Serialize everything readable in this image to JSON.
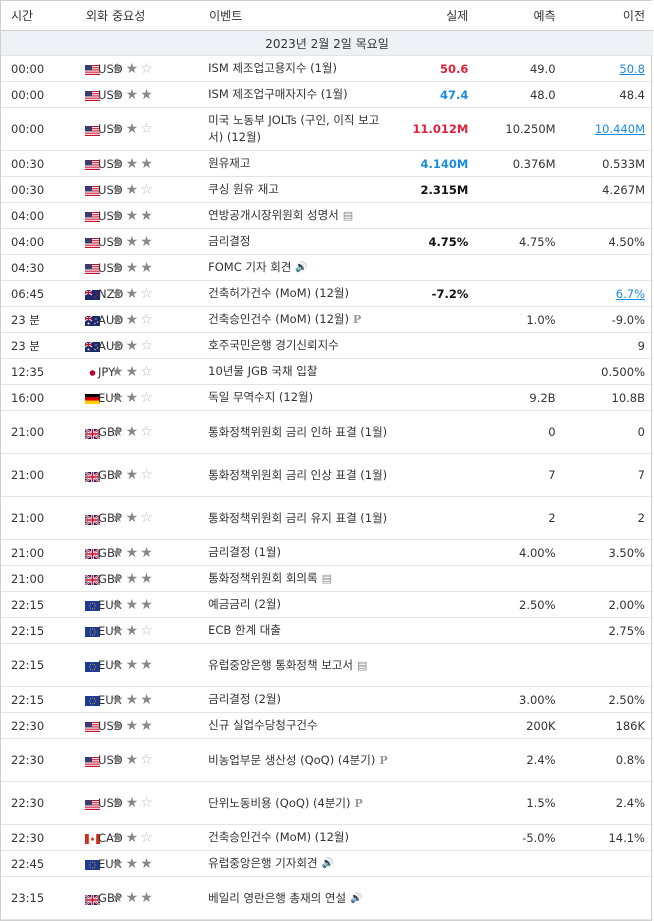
{
  "headers": {
    "time": "시간",
    "currency": "외화",
    "importance": "중요성",
    "event": "이벤트",
    "actual": "실제",
    "forecast": "예측",
    "previous": "이전"
  },
  "date_label": "2023년 2월 2일 목요일",
  "colors": {
    "red": "#e0213a",
    "blue": "#1a8ce0",
    "date_bg": "#eef0f6"
  },
  "rows": [
    {
      "time": "00:00",
      "flag": "us",
      "cur": "USD",
      "stars": 2,
      "event": "ISM 제조업고용지수 (1월)",
      "icon": "",
      "actual": "50.6",
      "actual_color": "red",
      "forecast": "49.0",
      "previous": "50.8",
      "prev_link": true
    },
    {
      "time": "00:00",
      "flag": "us",
      "cur": "USD",
      "stars": 3,
      "event": "ISM 제조업구매자지수 (1월)",
      "icon": "",
      "actual": "47.4",
      "actual_color": "blue",
      "forecast": "48.0",
      "previous": "48.4",
      "prev_link": false
    },
    {
      "time": "00:00",
      "flag": "us",
      "cur": "USD",
      "stars": 2,
      "event": "미국 노동부 JOLTs (구인, 이직 보고서) (12월)",
      "icon": "",
      "actual": "11.012M",
      "actual_color": "red",
      "forecast": "10.250M",
      "previous": "10.440M",
      "prev_link": true,
      "tall": true
    },
    {
      "time": "00:30",
      "flag": "us",
      "cur": "USD",
      "stars": 3,
      "event": "원유재고",
      "icon": "",
      "actual": "4.140M",
      "actual_color": "blue",
      "forecast": "0.376M",
      "previous": "0.533M",
      "prev_link": false
    },
    {
      "time": "00:30",
      "flag": "us",
      "cur": "USD",
      "stars": 2,
      "event": "쿠싱 원유 재고",
      "icon": "",
      "actual": "2.315M",
      "actual_color": "black",
      "forecast": "",
      "previous": "4.267M",
      "prev_link": false
    },
    {
      "time": "04:00",
      "flag": "us",
      "cur": "USD",
      "stars": 3,
      "event": "연방공개시장위원회 성명서",
      "icon": "doc",
      "actual": "",
      "actual_color": "black",
      "forecast": "",
      "previous": "",
      "prev_link": false
    },
    {
      "time": "04:00",
      "flag": "us",
      "cur": "USD",
      "stars": 3,
      "event": "금리결정",
      "icon": "",
      "actual": "4.75%",
      "actual_color": "black",
      "forecast": "4.75%",
      "previous": "4.50%",
      "prev_link": false
    },
    {
      "time": "04:30",
      "flag": "us",
      "cur": "USD",
      "stars": 3,
      "event": "FOMC 기자 회견",
      "icon": "sound",
      "actual": "",
      "actual_color": "black",
      "forecast": "",
      "previous": "",
      "prev_link": false
    },
    {
      "time": "06:45",
      "flag": "nz",
      "cur": "NZD",
      "stars": 2,
      "event": "건축허가건수 (MoM) (12월)",
      "icon": "",
      "actual": "-7.2%",
      "actual_color": "black",
      "forecast": "",
      "previous": "6.7%",
      "prev_link": true
    },
    {
      "time": "23 분",
      "flag": "au",
      "cur": "AUD",
      "stars": 2,
      "event": "건축승인건수 (MoM) (12월)",
      "icon": "p",
      "actual": "",
      "actual_color": "black",
      "forecast": "1.0%",
      "previous": "-9.0%",
      "prev_link": false
    },
    {
      "time": "23 분",
      "flag": "au",
      "cur": "AUD",
      "stars": 2,
      "event": "호주국민은행 경기신뢰지수",
      "icon": "",
      "actual": "",
      "actual_color": "black",
      "forecast": "",
      "previous": "9",
      "prev_link": false
    },
    {
      "time": "12:35",
      "flag": "jp",
      "cur": "JPY",
      "stars": 2,
      "event": "10년물 JGB 국채 입찰",
      "icon": "",
      "actual": "",
      "actual_color": "black",
      "forecast": "",
      "previous": "0.500%",
      "prev_link": false
    },
    {
      "time": "16:00",
      "flag": "de",
      "cur": "EUR",
      "stars": 2,
      "event": "독일 무역수지 (12월)",
      "icon": "",
      "actual": "",
      "actual_color": "black",
      "forecast": "9.2B",
      "previous": "10.8B",
      "prev_link": false
    },
    {
      "time": "21:00",
      "flag": "gb",
      "cur": "GBP",
      "stars": 2,
      "event": "통화정책위원회 금리 인하 표결 (1월)",
      "icon": "",
      "actual": "",
      "actual_color": "black",
      "forecast": "0",
      "previous": "0",
      "prev_link": false,
      "tall": true
    },
    {
      "time": "21:00",
      "flag": "gb",
      "cur": "GBP",
      "stars": 2,
      "event": "통화정책위원회 금리 인상 표결 (1월)",
      "icon": "",
      "actual": "",
      "actual_color": "black",
      "forecast": "7",
      "previous": "7",
      "prev_link": false,
      "tall": true
    },
    {
      "time": "21:00",
      "flag": "gb",
      "cur": "GBP",
      "stars": 2,
      "event": "통화정책위원회 금리 유지 표결 (1월)",
      "icon": "",
      "actual": "",
      "actual_color": "black",
      "forecast": "2",
      "previous": "2",
      "prev_link": false,
      "tall": true
    },
    {
      "time": "21:00",
      "flag": "gb",
      "cur": "GBP",
      "stars": 3,
      "event": "금리결정 (1월)",
      "icon": "",
      "actual": "",
      "actual_color": "black",
      "forecast": "4.00%",
      "previous": "3.50%",
      "prev_link": false
    },
    {
      "time": "21:00",
      "flag": "gb",
      "cur": "GBP",
      "stars": 3,
      "event": "통화정책위원회 회의록",
      "icon": "doc",
      "actual": "",
      "actual_color": "black",
      "forecast": "",
      "previous": "",
      "prev_link": false
    },
    {
      "time": "22:15",
      "flag": "eu",
      "cur": "EUR",
      "stars": 3,
      "event": "예금금리 (2월)",
      "icon": "",
      "actual": "",
      "actual_color": "black",
      "forecast": "2.50%",
      "previous": "2.00%",
      "prev_link": false
    },
    {
      "time": "22:15",
      "flag": "eu",
      "cur": "EUR",
      "stars": 2,
      "event": "ECB 한계 대출",
      "icon": "",
      "actual": "",
      "actual_color": "black",
      "forecast": "",
      "previous": "2.75%",
      "prev_link": false
    },
    {
      "time": "22:15",
      "flag": "eu",
      "cur": "EUR",
      "stars": 3,
      "event": "유럽중앙은행 통화정책 보고서",
      "icon": "doc",
      "actual": "",
      "actual_color": "black",
      "forecast": "",
      "previous": "",
      "prev_link": false,
      "tall": true
    },
    {
      "time": "22:15",
      "flag": "eu",
      "cur": "EUR",
      "stars": 3,
      "event": "금리결정 (2월)",
      "icon": "",
      "actual": "",
      "actual_color": "black",
      "forecast": "3.00%",
      "previous": "2.50%",
      "prev_link": false
    },
    {
      "time": "22:30",
      "flag": "us",
      "cur": "USD",
      "stars": 3,
      "event": "신규 실업수당청구건수",
      "icon": "",
      "actual": "",
      "actual_color": "black",
      "forecast": "200K",
      "previous": "186K",
      "prev_link": false
    },
    {
      "time": "22:30",
      "flag": "us",
      "cur": "USD",
      "stars": 2,
      "event": "비농업부문 생산성 (QoQ) (4분기)",
      "icon": "p",
      "actual": "",
      "actual_color": "black",
      "forecast": "2.4%",
      "previous": "0.8%",
      "prev_link": false,
      "tall": true
    },
    {
      "time": "22:30",
      "flag": "us",
      "cur": "USD",
      "stars": 2,
      "event": "단위노동비용 (QoQ) (4분기)",
      "icon": "p",
      "actual": "",
      "actual_color": "black",
      "forecast": "1.5%",
      "previous": "2.4%",
      "prev_link": false,
      "tall": true
    },
    {
      "time": "22:30",
      "flag": "ca",
      "cur": "CAD",
      "stars": 2,
      "event": "건축승인건수 (MoM) (12월)",
      "icon": "",
      "actual": "",
      "actual_color": "black",
      "forecast": "-5.0%",
      "previous": "14.1%",
      "prev_link": false
    },
    {
      "time": "22:45",
      "flag": "eu",
      "cur": "EUR",
      "stars": 3,
      "event": "유럽중앙은행 기자회견",
      "icon": "sound",
      "actual": "",
      "actual_color": "black",
      "forecast": "",
      "previous": "",
      "prev_link": false
    },
    {
      "time": "23:15",
      "flag": "gb",
      "cur": "GBP",
      "stars": 3,
      "event": "베일리 영란은행 총재의 연설",
      "icon": "sound",
      "actual": "",
      "actual_color": "black",
      "forecast": "",
      "previous": "",
      "prev_link": false,
      "tall": true
    }
  ]
}
